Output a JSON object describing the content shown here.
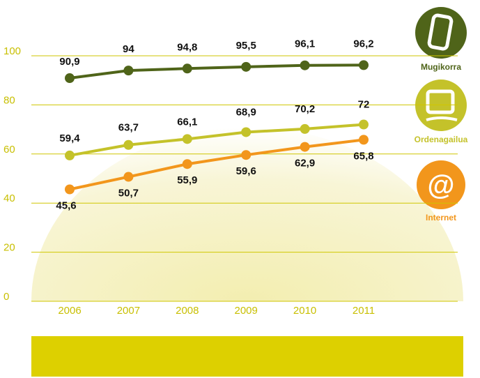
{
  "chart_data": {
    "type": "line",
    "categories": [
      "2006",
      "2007",
      "2008",
      "2009",
      "2010",
      "2011"
    ],
    "series": [
      {
        "name": "Mugikorra",
        "color": "#4f6419",
        "values": [
          90.9,
          94,
          94.8,
          95.5,
          96.1,
          96.2
        ],
        "value_labels": [
          "90,9",
          "94",
          "94,8",
          "95,5",
          "96,1",
          "96,2"
        ]
      },
      {
        "name": "Ordenagailua",
        "color": "#c4c22a",
        "values": [
          59.4,
          63.7,
          66.1,
          68.9,
          70.2,
          72
        ],
        "value_labels": [
          "59,4",
          "63,7",
          "66,1",
          "68,9",
          "70,2",
          "72"
        ]
      },
      {
        "name": "Internet",
        "color": "#f2961c",
        "values": [
          45.6,
          50.7,
          55.9,
          59.6,
          62.9,
          65.8
        ],
        "value_labels": [
          "45,6",
          "50,7",
          "55,9",
          "59,6",
          "62,9",
          "65,8"
        ]
      }
    ],
    "ylim": [
      0,
      100
    ],
    "yticks": [
      0,
      20,
      40,
      60,
      80,
      100
    ],
    "grid": true
  }
}
